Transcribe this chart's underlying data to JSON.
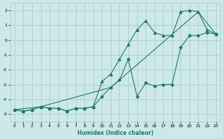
{
  "background_color": "#cce8e8",
  "grid_color": "#aacccc",
  "line_color": "#1a7a6e",
  "xlabel": "Humidex (Indice chaleur)",
  "xlim": [
    -0.5,
    23.5
  ],
  "ylim": [
    -5.5,
    2.5
  ],
  "yticks": [
    -5,
    -4,
    -3,
    -2,
    -1,
    0,
    1,
    2
  ],
  "xticks": [
    0,
    1,
    2,
    3,
    4,
    5,
    6,
    7,
    8,
    9,
    10,
    11,
    12,
    13,
    14,
    15,
    16,
    17,
    18,
    19,
    20,
    21,
    22,
    23
  ],
  "series1_x": [
    0,
    1,
    2,
    3,
    4,
    5,
    6,
    7,
    8,
    9,
    10,
    11,
    12,
    13,
    14,
    15,
    16,
    17,
    18,
    19,
    20,
    21,
    22,
    23
  ],
  "series1_y": [
    -4.7,
    -4.8,
    -4.7,
    -4.5,
    -4.6,
    -4.6,
    -4.8,
    -4.6,
    -4.6,
    -4.5,
    -3.8,
    -3.2,
    -2.7,
    -1.3,
    -3.8,
    -2.9,
    -3.1,
    -3.0,
    -3.0,
    -0.5,
    0.3,
    0.3,
    0.5,
    0.4
  ],
  "series2_x": [
    0,
    1,
    2,
    3,
    4,
    5,
    6,
    7,
    8,
    9,
    10,
    11,
    12,
    13,
    14,
    15,
    16,
    17,
    18,
    19,
    20,
    21,
    22,
    23
  ],
  "series2_y": [
    -4.7,
    -4.8,
    -4.7,
    -4.5,
    -4.6,
    -4.6,
    -4.8,
    -4.6,
    -4.6,
    -4.5,
    -2.8,
    -2.3,
    -1.3,
    -0.3,
    0.7,
    1.3,
    0.5,
    0.3,
    0.3,
    1.9,
    2.0,
    1.9,
    0.7,
    0.4
  ],
  "series3_x": [
    0,
    3,
    11,
    21,
    23
  ],
  "series3_y": [
    -4.7,
    -4.5,
    -3.2,
    1.9,
    0.4
  ]
}
